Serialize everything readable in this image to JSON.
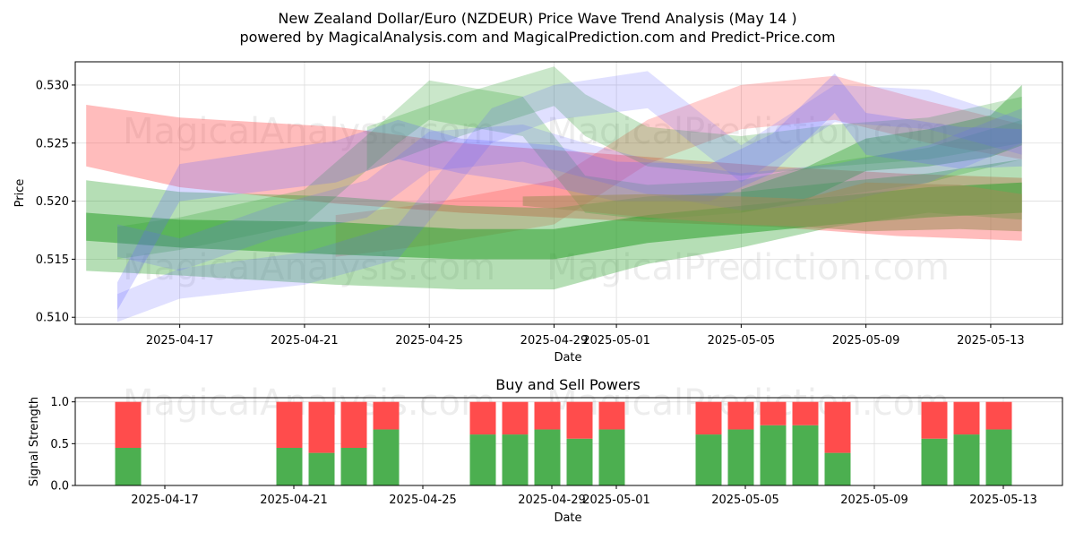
{
  "header": {
    "title": "New Zealand Dollar/Euro (NZDEUR) Price Wave Trend Analysis (May 14 )",
    "subtitle": "powered by MagicalAnalysis.com and MagicalPrediction.com and Predict-Price.com"
  },
  "watermarks": {
    "left": "MagicalAnalysis.com",
    "right": "MagicalPrediction.com"
  },
  "colors": {
    "green": "#2ca02c",
    "red": "#ff4040",
    "blue": "#6464ff",
    "olive": "#9e8c5a",
    "buy": "#4caf50",
    "sell": "#ff4c4c",
    "grid": "#dddddd"
  },
  "chart_data": [
    {
      "type": "area",
      "title": "",
      "xlabel": "Date",
      "ylabel": "Price",
      "x_ticks": [
        "2025-04-17",
        "2025-04-21",
        "2025-04-25",
        "2025-04-29",
        "2025-05-01",
        "2025-05-05",
        "2025-05-09",
        "2025-05-13"
      ],
      "y_ticks": [
        "0.510",
        "0.515",
        "0.520",
        "0.525",
        "0.530"
      ],
      "ylim": [
        0.5094,
        0.532
      ],
      "xlim": [
        "2025-04-14",
        "2025-05-15"
      ],
      "grid": true,
      "legend": "none",
      "bands": [
        {
          "color": "red",
          "opacity": 0.35,
          "x": [
            "2025-04-14",
            "2025-04-17",
            "2025-04-22",
            "2025-04-26",
            "2025-05-02",
            "2025-05-06",
            "2025-05-10",
            "2025-05-14"
          ],
          "upper": [
            0.5283,
            0.5272,
            0.5264,
            0.525,
            0.5238,
            0.523,
            0.5224,
            0.522
          ],
          "lower": [
            0.523,
            0.5212,
            0.5198,
            0.519,
            0.5182,
            0.5178,
            0.517,
            0.5166
          ]
        },
        {
          "color": "red",
          "opacity": 0.25,
          "x": [
            "2025-04-22",
            "2025-04-25",
            "2025-04-29",
            "2025-05-02",
            "2025-05-05",
            "2025-05-08",
            "2025-05-11",
            "2025-05-14"
          ],
          "upper": [
            0.5188,
            0.5198,
            0.5218,
            0.527,
            0.53,
            0.5308,
            0.5286,
            0.5266
          ],
          "lower": [
            0.5152,
            0.5162,
            0.518,
            0.5232,
            0.5262,
            0.527,
            0.525,
            0.5236
          ]
        },
        {
          "color": "green",
          "opacity": 0.35,
          "x": [
            "2025-04-14",
            "2025-04-17",
            "2025-04-22",
            "2025-04-26",
            "2025-04-29",
            "2025-05-02",
            "2025-05-05",
            "2025-05-08",
            "2025-05-11",
            "2025-05-14"
          ],
          "upper": [
            0.5218,
            0.5208,
            0.5204,
            0.5196,
            0.5194,
            0.5204,
            0.5208,
            0.5216,
            0.5224,
            0.5236
          ],
          "lower": [
            0.514,
            0.5136,
            0.5128,
            0.5124,
            0.5124,
            0.5146,
            0.516,
            0.5178,
            0.519,
            0.5184
          ]
        },
        {
          "color": "green",
          "opacity": 0.55,
          "x": [
            "2025-04-14",
            "2025-04-17",
            "2025-04-22",
            "2025-04-26",
            "2025-04-29",
            "2025-05-02",
            "2025-05-05",
            "2025-05-08",
            "2025-05-11",
            "2025-05-14"
          ],
          "upper": [
            0.519,
            0.5184,
            0.5182,
            0.5176,
            0.5176,
            0.5188,
            0.5196,
            0.5204,
            0.5212,
            0.5216
          ],
          "lower": [
            0.5166,
            0.516,
            0.5154,
            0.515,
            0.515,
            0.5164,
            0.5172,
            0.518,
            0.5186,
            0.519
          ]
        },
        {
          "color": "green",
          "opacity": 0.25,
          "x": [
            "2025-04-15",
            "2025-04-17",
            "2025-04-21",
            "2025-04-24",
            "2025-04-25",
            "2025-04-28",
            "2025-04-30",
            "2025-05-02",
            "2025-05-05",
            "2025-05-08",
            "2025-05-11",
            "2025-05-14"
          ],
          "upper": [
            0.5178,
            0.5186,
            0.521,
            0.528,
            0.5304,
            0.529,
            0.5222,
            0.5214,
            0.5218,
            0.5234,
            0.5246,
            0.527
          ],
          "lower": [
            0.515,
            0.5158,
            0.518,
            0.525,
            0.527,
            0.5256,
            0.519,
            0.5184,
            0.519,
            0.5204,
            0.5216,
            0.5236
          ]
        },
        {
          "color": "green",
          "opacity": 0.25,
          "x": [
            "2025-04-23",
            "2025-04-26",
            "2025-04-29",
            "2025-04-30",
            "2025-05-02",
            "2025-05-05",
            "2025-05-08",
            "2025-05-11",
            "2025-05-14"
          ],
          "upper": [
            0.5264,
            0.5292,
            0.5316,
            0.5292,
            0.5264,
            0.5256,
            0.5266,
            0.5272,
            0.529
          ],
          "lower": [
            0.5226,
            0.5256,
            0.5282,
            0.5256,
            0.523,
            0.5222,
            0.523,
            0.5236,
            0.525
          ]
        },
        {
          "color": "green",
          "opacity": 0.4,
          "x": [
            "2025-05-05",
            "2025-05-07",
            "2025-05-09",
            "2025-05-11",
            "2025-05-13",
            "2025-05-14"
          ],
          "upper": [
            0.521,
            0.5228,
            0.5254,
            0.5262,
            0.5274,
            0.53
          ],
          "lower": [
            0.519,
            0.52,
            0.5226,
            0.523,
            0.5238,
            0.5248
          ]
        },
        {
          "color": "blue",
          "opacity": 0.25,
          "x": [
            "2025-04-15",
            "2025-04-17",
            "2025-04-22",
            "2025-04-24",
            "2025-04-26",
            "2025-04-29",
            "2025-05-01",
            "2025-05-04",
            "2025-05-06",
            "2025-05-08",
            "2025-05-09",
            "2025-05-12",
            "2025-05-14"
          ],
          "upper": [
            0.513,
            0.5232,
            0.5252,
            0.527,
            0.5254,
            0.5248,
            0.5234,
            0.5232,
            0.5258,
            0.531,
            0.5276,
            0.5264,
            0.5262
          ],
          "lower": [
            0.5106,
            0.52,
            0.5216,
            0.5236,
            0.5224,
            0.5212,
            0.52,
            0.52,
            0.5224,
            0.5276,
            0.524,
            0.5228,
            0.523
          ]
        },
        {
          "color": "blue",
          "opacity": 0.2,
          "x": [
            "2025-04-15",
            "2025-04-17",
            "2025-04-21",
            "2025-04-24",
            "2025-04-27",
            "2025-04-29",
            "2025-05-02",
            "2025-05-05",
            "2025-05-08",
            "2025-05-11",
            "2025-05-14"
          ],
          "upper": [
            0.512,
            0.5142,
            0.5156,
            0.518,
            0.528,
            0.53,
            0.5312,
            0.5248,
            0.53,
            0.5296,
            0.527
          ],
          "lower": [
            0.5096,
            0.5116,
            0.5128,
            0.515,
            0.525,
            0.527,
            0.528,
            0.5216,
            0.5268,
            0.5262,
            0.524
          ]
        },
        {
          "color": "blue",
          "opacity": 0.2,
          "x": [
            "2025-04-15",
            "2025-04-17",
            "2025-04-20",
            "2025-04-23",
            "2025-04-25",
            "2025-04-28",
            "2025-04-30",
            "2025-05-02",
            "2025-05-05",
            "2025-05-08",
            "2025-05-11",
            "2025-05-14"
          ],
          "upper": [
            0.518,
            0.5168,
            0.5196,
            0.5218,
            0.526,
            0.5266,
            0.525,
            0.5236,
            0.5224,
            0.5232,
            0.5248,
            0.528
          ],
          "lower": [
            0.5152,
            0.514,
            0.5168,
            0.5186,
            0.5226,
            0.5234,
            0.522,
            0.5206,
            0.5192,
            0.5198,
            0.5216,
            0.525
          ]
        },
        {
          "color": "olive",
          "opacity": 0.55,
          "x": [
            "2025-04-28",
            "2025-05-02",
            "2025-05-05",
            "2025-05-07",
            "2025-05-09",
            "2025-05-12",
            "2025-05-14"
          ],
          "upper": [
            0.5204,
            0.5206,
            0.5204,
            0.5202,
            0.5216,
            0.5214,
            0.5206
          ],
          "lower": [
            0.5196,
            0.5186,
            0.518,
            0.5178,
            0.5174,
            0.5176,
            0.5174
          ]
        }
      ]
    },
    {
      "type": "bar",
      "title": "Buy and Sell Powers",
      "xlabel": "Date",
      "ylabel": "Signal Strength",
      "x_ticks": [
        "2025-04-17",
        "2025-04-21",
        "2025-04-25",
        "2025-04-29",
        "2025-05-01",
        "2025-05-05",
        "2025-05-09",
        "2025-05-13"
      ],
      "y_ticks": [
        "0.0",
        "0.5",
        "1.0"
      ],
      "ylim": [
        0,
        1.05
      ],
      "grid": true,
      "categories": [
        "2025-04-16",
        "2025-04-21",
        "2025-04-22",
        "2025-04-23",
        "2025-04-24",
        "2025-04-27",
        "2025-04-28",
        "2025-04-29",
        "2025-04-30",
        "2025-05-01",
        "2025-05-04",
        "2025-05-05",
        "2025-05-06",
        "2025-05-07",
        "2025-05-08",
        "2025-05-11",
        "2025-05-12",
        "2025-05-13"
      ],
      "series": [
        {
          "name": "",
          "color": "buy",
          "values": [
            0.45,
            0.45,
            0.39,
            0.45,
            0.67,
            0.61,
            0.61,
            0.67,
            0.56,
            0.67,
            0.61,
            0.67,
            0.72,
            0.72,
            0.39,
            0.56,
            0.61,
            0.67
          ]
        },
        {
          "name": "",
          "color": "sell",
          "values": [
            0.55,
            0.55,
            0.61,
            0.55,
            0.33,
            0.39,
            0.39,
            0.33,
            0.44,
            0.33,
            0.39,
            0.33,
            0.28,
            0.28,
            0.61,
            0.44,
            0.39,
            0.33
          ]
        }
      ]
    }
  ]
}
